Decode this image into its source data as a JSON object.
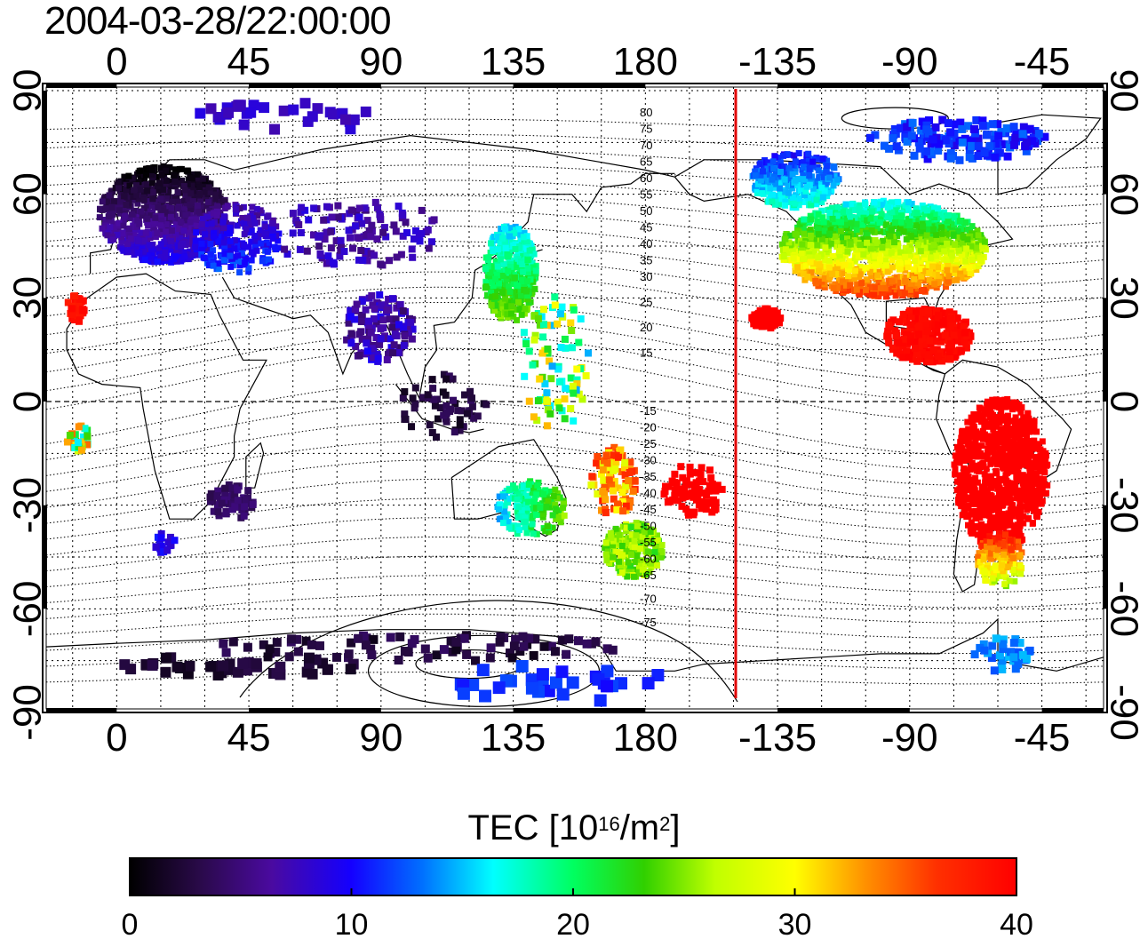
{
  "title": "2004-03-28/22:00:00",
  "map": {
    "longitude_ticks": [
      "0",
      "45",
      "90",
      "135",
      "180",
      "-135",
      "-90",
      "-45"
    ],
    "latitude_ticks_left": [
      "90",
      "60",
      "30",
      "0",
      "-30",
      "-60",
      "-90"
    ],
    "latitude_ticks_right": [
      "90",
      "60",
      "30",
      "0",
      "-30",
      "-60",
      "-90"
    ],
    "north_contour_labels": [
      "80",
      "75",
      "70",
      "65",
      "60",
      "55",
      "50",
      "45",
      "40",
      "35",
      "30",
      "25",
      "20",
      "15"
    ],
    "south_contour_labels": [
      "-15",
      "-20",
      "-25",
      "-30",
      "-35",
      "-40",
      "-45",
      "-50",
      "-55",
      "-60",
      "-65",
      "-70",
      "-75"
    ],
    "terminator_color": "#e00000"
  },
  "colorbar": {
    "title_main": "TEC  [10",
    "title_exp1": "16",
    "title_mid": "/m",
    "title_exp2": "2",
    "title_end": "]",
    "tick_labels": [
      "0",
      "10",
      "20",
      "30",
      "40"
    ],
    "min": 0,
    "max": 40
  }
}
